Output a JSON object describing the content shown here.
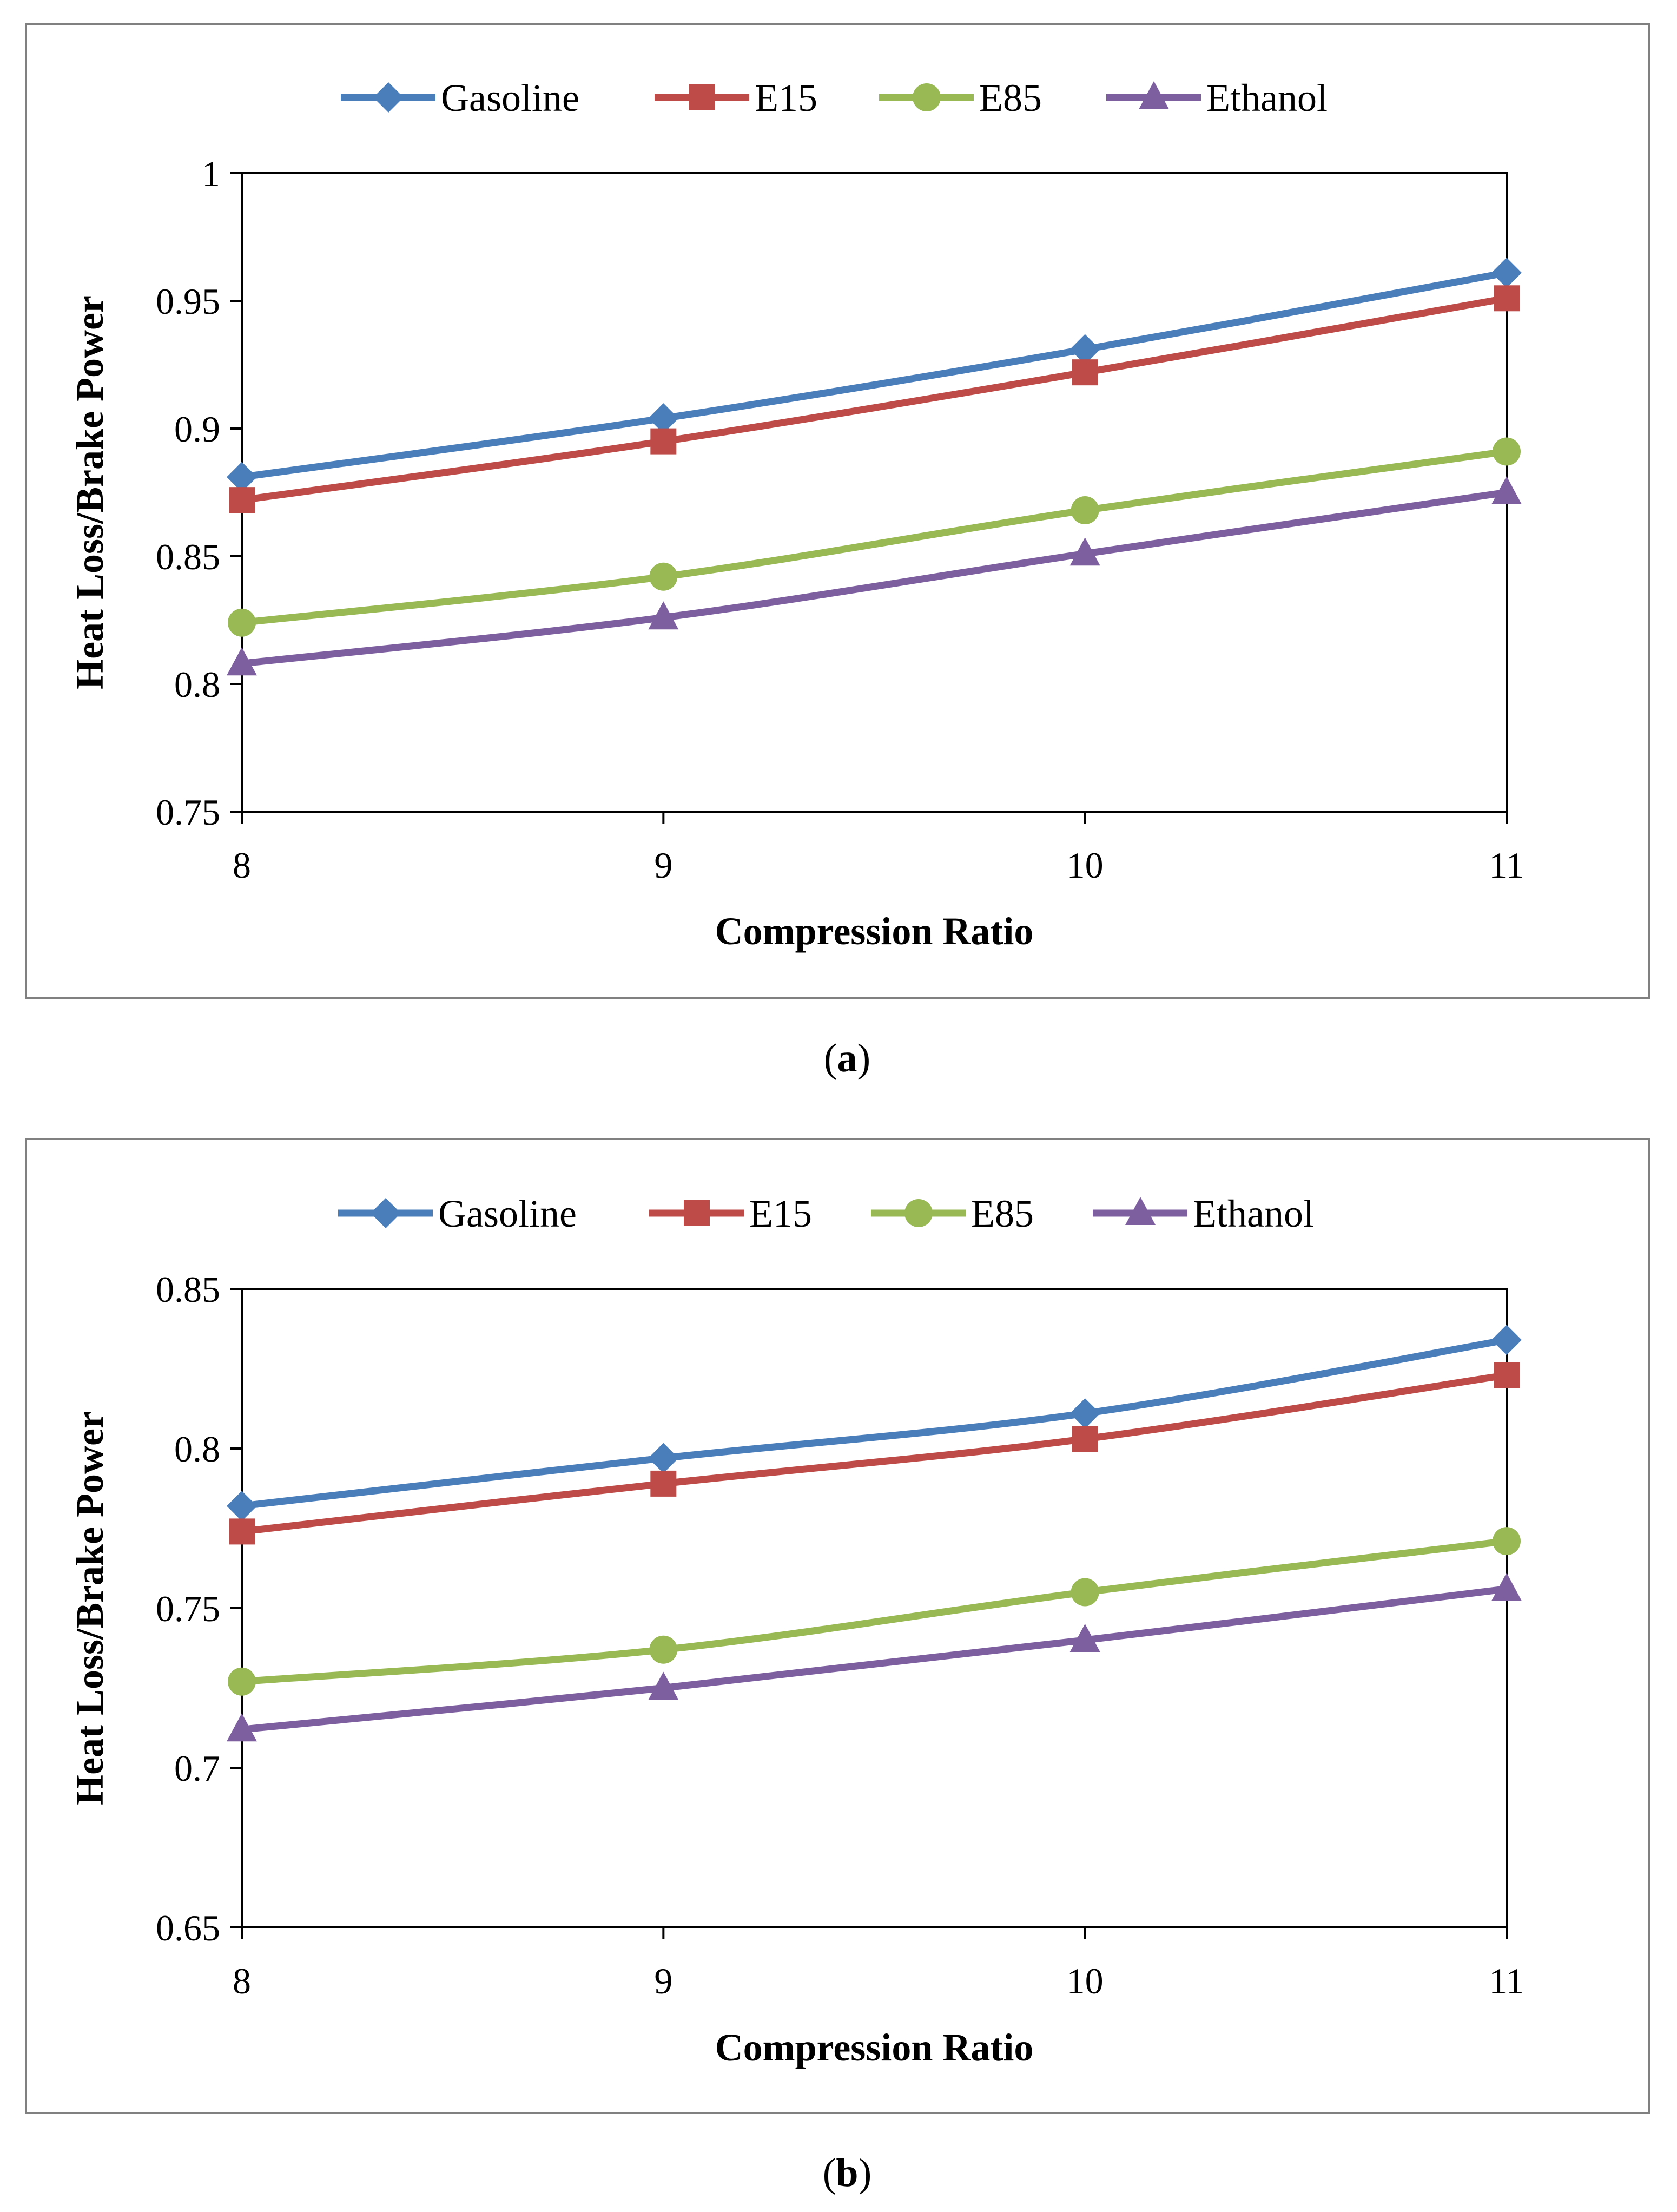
{
  "chart_data": [
    {
      "type": "line",
      "caption_letter": "a",
      "xlabel": "Compression Ratio",
      "ylabel": "Heat Loss/Brake Power",
      "x": [
        8,
        9,
        10,
        11
      ],
      "xticks": [
        "8",
        "9",
        "10",
        "11"
      ],
      "ylim": [
        0.75,
        1.0
      ],
      "yticks": [
        "0.75",
        "0.8",
        "0.85",
        "0.9",
        "0.95",
        "1"
      ],
      "grid": false,
      "legend_position": "top-center",
      "series": [
        {
          "name": "Gasoline",
          "color": "#4a7ebb",
          "marker": "diamond",
          "values": [
            0.881,
            0.904,
            0.931,
            0.961
          ]
        },
        {
          "name": "E15",
          "color": "#be4b48",
          "marker": "square",
          "values": [
            0.872,
            0.895,
            0.922,
            0.951
          ]
        },
        {
          "name": "E85",
          "color": "#98b954",
          "marker": "circle",
          "values": [
            0.824,
            0.842,
            0.868,
            0.891
          ]
        },
        {
          "name": "Ethanol",
          "color": "#7d5fa0",
          "marker": "triangle",
          "values": [
            0.808,
            0.826,
            0.851,
            0.875
          ]
        }
      ]
    },
    {
      "type": "line",
      "caption_letter": "b",
      "xlabel": "Compression Ratio",
      "ylabel": "Heat Loss/Brake Power",
      "x": [
        8,
        9,
        10,
        11
      ],
      "xticks": [
        "8",
        "9",
        "10",
        "11"
      ],
      "ylim": [
        0.65,
        0.85
      ],
      "yticks": [
        "0.65",
        "0.7",
        "0.75",
        "0.8",
        "0.85"
      ],
      "grid": false,
      "legend_position": "top-center",
      "series": [
        {
          "name": "Gasoline",
          "color": "#4a7ebb",
          "marker": "diamond",
          "values": [
            0.782,
            0.797,
            0.811,
            0.834
          ]
        },
        {
          "name": "E15",
          "color": "#be4b48",
          "marker": "square",
          "values": [
            0.774,
            0.789,
            0.803,
            0.823
          ]
        },
        {
          "name": "E85",
          "color": "#98b954",
          "marker": "circle",
          "values": [
            0.727,
            0.737,
            0.755,
            0.771
          ]
        },
        {
          "name": "Ethanol",
          "color": "#7d5fa0",
          "marker": "triangle",
          "values": [
            0.712,
            0.725,
            0.74,
            0.756
          ]
        }
      ]
    }
  ]
}
